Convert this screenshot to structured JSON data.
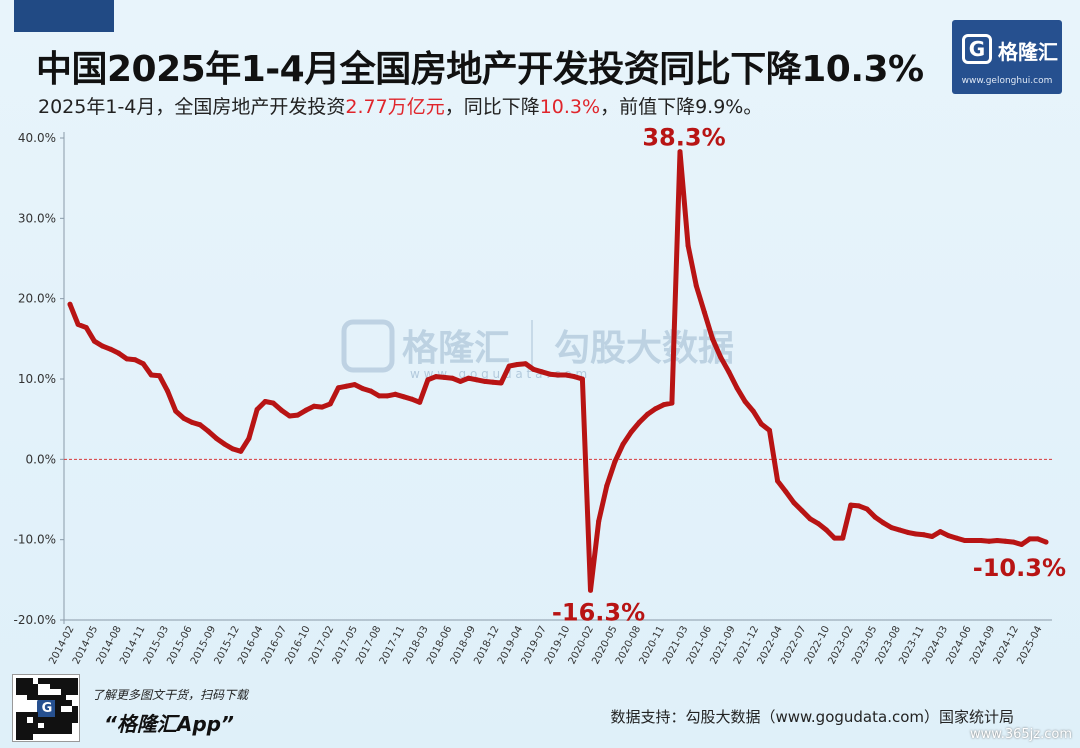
{
  "title": "中国2025年1-4月全国房地产开发投资同比下降10.3%",
  "subtitle": {
    "pre": "2025年1-4月，全国房地产开发投资",
    "hl1": "2.77万亿元",
    "mid": "，同比下降",
    "hl2": "10.3%",
    "post": "，前值下降9.9%。"
  },
  "logo": {
    "mark": "G",
    "text": "格隆汇",
    "url": "www.gelonghui.com"
  },
  "watermark": {
    "brand": "格隆汇",
    "brand2": "勾股大数据",
    "url": "w w w . g o g u d a t a . c o m"
  },
  "footer": {
    "qr_text": "了解更多图文干货，扫码下载",
    "app_name": "“格隆汇App”",
    "source": "数据支持：勾股大数据（www.gogudata.com）国家统计局",
    "site": "www.365jz.com"
  },
  "colors": {
    "line": "#b81414",
    "annotation": "#b81414",
    "zero_line": "#d83a3a",
    "logo_bg": "#26508f"
  },
  "chart_data": {
    "type": "line",
    "title": "中国2025年1-4月全国房地产开发投资同比下降10.3%",
    "ylim": [
      -20,
      40
    ],
    "yticks": [
      40,
      30,
      20,
      10,
      0,
      -10,
      -20
    ],
    "ytick_labels": [
      "40.0%",
      "30.0%",
      "20.0%",
      "10.0%",
      "0.0%",
      "-10.0%",
      "-20.0%"
    ],
    "xtick_labels": [
      "2014-02",
      "2014-05",
      "2014-08",
      "2014-11",
      "2015-03",
      "2015-06",
      "2015-09",
      "2015-12",
      "2016-04",
      "2016-07",
      "2016-10",
      "2017-02",
      "2017-05",
      "2017-08",
      "2017-11",
      "2018-03",
      "2018-06",
      "2018-09",
      "2018-12",
      "2019-04",
      "2019-07",
      "2019-10",
      "2020-02",
      "2020-05",
      "2020-08",
      "2020-11",
      "2021-03",
      "2021-06",
      "2021-09",
      "2021-12",
      "2022-04",
      "2022-07",
      "2022-10",
      "2023-02",
      "2023-05",
      "2023-08",
      "2023-11",
      "2024-03",
      "2024-06",
      "2024-09",
      "2024-12",
      "2025-04"
    ],
    "zero_line": true,
    "grid": false,
    "series": [
      {
        "values": [
          19.3,
          16.8,
          16.4,
          14.7,
          14.1,
          13.7,
          13.2,
          12.5,
          12.4,
          11.9,
          10.5,
          10.4,
          8.5,
          6.0,
          5.1,
          4.6,
          4.3,
          3.5,
          2.6,
          1.9,
          1.3,
          1.0,
          2.6,
          6.2,
          7.2,
          7.0,
          6.1,
          5.4,
          5.5,
          6.1,
          6.6,
          6.5,
          6.9,
          8.9,
          9.1,
          9.3,
          8.8,
          8.5,
          7.9,
          7.9,
          8.1,
          7.8,
          7.5,
          7.1,
          9.9,
          10.3,
          10.2,
          10.1,
          9.7,
          10.1,
          9.9,
          9.7,
          9.6,
          9.5,
          11.6,
          11.8,
          11.9,
          11.2,
          10.9,
          10.6,
          10.5,
          10.5,
          10.3,
          10.0,
          -16.3,
          -7.7,
          -3.3,
          -0.3,
          1.9,
          3.4,
          4.6,
          5.6,
          6.3,
          6.8,
          7.0,
          38.3,
          26.6,
          21.6,
          18.3,
          15.0,
          12.7,
          10.9,
          8.9,
          7.2,
          6.0,
          4.4,
          3.6,
          -2.7,
          -4.0,
          -5.4,
          -6.4,
          -7.4,
          -8.0,
          -8.8,
          -9.8,
          -9.8,
          -5.7,
          -5.8,
          -6.2,
          -7.2,
          -7.9,
          -8.5,
          -8.8,
          -9.1,
          -9.3,
          -9.4,
          -9.6,
          -9.0,
          -9.5,
          -9.8,
          -10.1,
          -10.1,
          -10.1,
          -10.2,
          -10.1,
          -10.2,
          -10.3,
          -10.6,
          -9.9,
          -9.9,
          -10.3
        ]
      }
    ],
    "annotations": [
      {
        "text": "38.3%",
        "value": 38.3
      },
      {
        "text": "-16.3%",
        "value": -16.3
      },
      {
        "text": "-10.3%",
        "value": -10.3
      }
    ]
  }
}
